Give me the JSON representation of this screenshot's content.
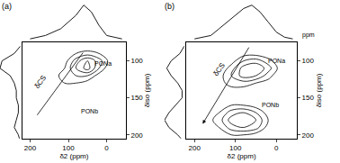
{
  "chart_data": [
    {
      "type": "contour",
      "title": "(a)",
      "x_label": "δ2 (ppm)",
      "y_label": "δiso (ppm)",
      "xlim": [
        220,
        -50
      ],
      "ylim": [
        205,
        75
      ],
      "xticks": [
        200,
        100,
        0
      ],
      "yticks": [
        100,
        150,
        200
      ],
      "x": [
        200,
        170,
        140,
        110,
        80,
        50,
        20,
        -10,
        -40
      ],
      "y": [
        80,
        90,
        100,
        110,
        120,
        130,
        140,
        150,
        160,
        170,
        180,
        190,
        200,
        210
      ],
      "z": [
        [
          0,
          0,
          0,
          0,
          0,
          0,
          0,
          0,
          0
        ],
        [
          0,
          0,
          0,
          0,
          2,
          3,
          2,
          0,
          0
        ],
        [
          0,
          0,
          0,
          1,
          5,
          8,
          5,
          1,
          0
        ],
        [
          0,
          0,
          0,
          2,
          6,
          9,
          4,
          0,
          0
        ],
        [
          0,
          0,
          1,
          3,
          4,
          4,
          1,
          0,
          0
        ],
        [
          0,
          0,
          1,
          2,
          2,
          1,
          0,
          0,
          0
        ],
        [
          0,
          1,
          2,
          1,
          1,
          0,
          0,
          0,
          0
        ],
        [
          0,
          1,
          2,
          1,
          0,
          0,
          0,
          0,
          0
        ],
        [
          0,
          1,
          1,
          0,
          0,
          0,
          0,
          0,
          0
        ],
        [
          0,
          0,
          0,
          0,
          0,
          0,
          0,
          0,
          0
        ],
        [
          0,
          0,
          1,
          1,
          1,
          0,
          0,
          0,
          0
        ],
        [
          0,
          0,
          1,
          2,
          2,
          1,
          0,
          0,
          0
        ],
        [
          0,
          0,
          0,
          1,
          1,
          0,
          0,
          0,
          0
        ],
        [
          0,
          0,
          0,
          0,
          0,
          0,
          0,
          0,
          0
        ]
      ],
      "color": "#000000",
      "top_projection": {
        "x": [
          200,
          180,
          160,
          140,
          120,
          100,
          80,
          60,
          40,
          20,
          0,
          -20,
          -40
        ],
        "values": [
          0,
          0.5,
          1,
          2,
          3,
          5,
          7,
          10,
          8,
          4,
          1,
          0.5,
          0
        ]
      },
      "left_projection": {
        "y": [
          80,
          90,
          100,
          110,
          120,
          130,
          140,
          150,
          160,
          170,
          180,
          190,
          200,
          210
        ],
        "values": [
          0,
          3,
          9,
          10,
          5,
          3,
          2,
          2,
          1,
          1,
          2,
          3,
          1,
          0
        ]
      },
      "annotations": [
        {
          "text": "PONa",
          "x": 10,
          "y": 104
        },
        {
          "text": "PONb",
          "x": 45,
          "y": 168
        },
        {
          "text": "δCS",
          "x": 172,
          "y": 128
        }
      ],
      "lines": [
        {
          "x": [
            184,
            62
          ],
          "y": [
            175,
            89
          ]
        }
      ]
    },
    {
      "type": "contour",
      "title": "(b)",
      "x_label": "δ2 (ppm)",
      "y_label": "δiso (ppm)",
      "corner_label": "ppm",
      "xlim": [
        220,
        -50
      ],
      "ylim": [
        205,
        75
      ],
      "xticks": [
        200,
        100,
        0
      ],
      "yticks": [
        100,
        150,
        200
      ],
      "x": [
        200,
        170,
        140,
        110,
        80,
        50,
        20,
        -10,
        -40
      ],
      "y": [
        80,
        90,
        100,
        110,
        120,
        130,
        140,
        150,
        160,
        170,
        180,
        190,
        200,
        210
      ],
      "z": [
        [
          0,
          0,
          0,
          0,
          0,
          0,
          0,
          0,
          0
        ],
        [
          0,
          0,
          0,
          0,
          1,
          1,
          0,
          0,
          0
        ],
        [
          0,
          0,
          0,
          1,
          4,
          5,
          3,
          0,
          0
        ],
        [
          0,
          0,
          0,
          3,
          7,
          8,
          5,
          1,
          0
        ],
        [
          0,
          0,
          1,
          4,
          7,
          6,
          3,
          0,
          0
        ],
        [
          0,
          0,
          1,
          3,
          3,
          2,
          1,
          0,
          0
        ],
        [
          0,
          0,
          0,
          1,
          1,
          0,
          0,
          0,
          0
        ],
        [
          0,
          0,
          0,
          0,
          0,
          0,
          0,
          0,
          0
        ],
        [
          0,
          0,
          1,
          2,
          2,
          1,
          0,
          0,
          0
        ],
        [
          0,
          0,
          2,
          5,
          6,
          4,
          1,
          0,
          0
        ],
        [
          0,
          1,
          3,
          7,
          8,
          6,
          2,
          0,
          0
        ],
        [
          0,
          0,
          2,
          5,
          6,
          5,
          1,
          0,
          0
        ],
        [
          0,
          0,
          1,
          2,
          2,
          1,
          0,
          0,
          0
        ],
        [
          0,
          0,
          0,
          0,
          0,
          0,
          0,
          0,
          0
        ]
      ],
      "color": "#000000",
      "top_projection": {
        "x": [
          200,
          180,
          160,
          140,
          120,
          100,
          80,
          60,
          40,
          20,
          0,
          -20,
          -40
        ],
        "values": [
          0,
          0.5,
          1,
          3,
          5,
          7,
          9,
          10,
          8,
          5,
          2,
          0.5,
          0
        ]
      },
      "left_projection": {
        "y": [
          80,
          90,
          100,
          110,
          120,
          130,
          140,
          150,
          160,
          170,
          180,
          190,
          200,
          210
        ],
        "values": [
          0,
          2,
          6,
          8,
          6,
          3,
          1,
          1,
          4,
          7,
          9,
          7,
          3,
          0
        ]
      },
      "annotations": [
        {
          "text": "PONa",
          "x": 0,
          "y": 100
        },
        {
          "text": "PONb",
          "x": 15,
          "y": 160
        },
        {
          "text": "δCS",
          "x": 140,
          "y": 112
        }
      ],
      "lines": [
        {
          "x": [
            65,
            180
          ],
          "y": [
            80,
            185
          ],
          "marker": "arrow"
        }
      ]
    }
  ]
}
